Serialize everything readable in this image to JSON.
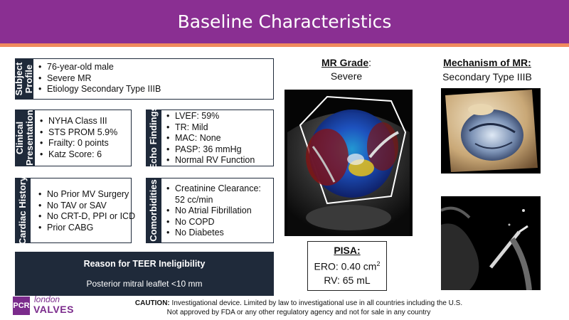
{
  "header": {
    "title": "Baseline Characteristics"
  },
  "subject_profile": {
    "label": "Subject Profile",
    "items": [
      "76-year-old male",
      "Severe MR",
      "Etiology Secondary Type IIIB"
    ]
  },
  "clinical_presentation": {
    "label": "Clinical Presentation",
    "items": [
      "NYHA Class III",
      "STS PROM 5.9%",
      "Frailty: 0 points",
      "Katz Score: 6"
    ]
  },
  "echo_findings": {
    "label": "Echo Findings",
    "items": [
      "LVEF: 59%",
      "TR: Mild",
      "MAC: None",
      "PASP: 36 mmHg",
      "Normal RV Function"
    ]
  },
  "cardiac_history": {
    "label": "Cardiac History",
    "items": [
      "No Prior MV Surgery",
      "No TAV or SAV",
      "No CRT-D, PPI or ICD",
      "Prior CABG"
    ]
  },
  "comorbidities": {
    "label": "Comorbidities",
    "items": [
      "Creatinine Clearance: 52 cc/min",
      "No Atrial Fibrillation",
      "No COPD",
      "No Diabetes"
    ]
  },
  "reason": {
    "title": "Reason for TEER Ineligibility",
    "text": "Posterior mitral leaflet <10 mm"
  },
  "mr_grade": {
    "label": "MR Grade",
    "suffix": ":",
    "value": "Severe"
  },
  "mechanism": {
    "label": "Mechanism of MR:",
    "value": "Secondary Type IIIB"
  },
  "pisa": {
    "title": "PISA:",
    "ero_text": "ERO: 0.40 cm",
    "ero_sup": "2",
    "rv": "RV: 65 mL"
  },
  "logo": {
    "box": "PCR",
    "line1": "london",
    "line2": "VALVES"
  },
  "caution": {
    "lead": "CAUTION:",
    "line1": "Investigational device. Limited by law to investigational use in all countries including the U.S.",
    "line2": "Not approved by FDA or any other regulatory agency and not for sale in any country"
  }
}
